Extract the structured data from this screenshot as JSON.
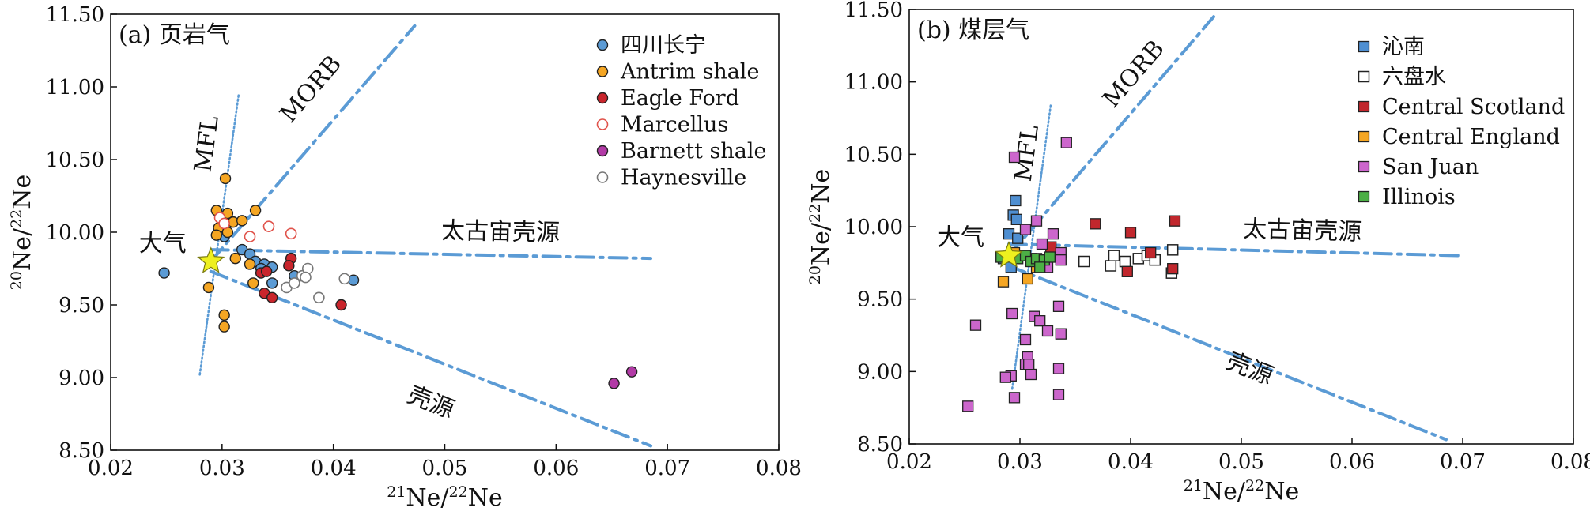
{
  "colors": {
    "line": "#5b9bd5",
    "sichuan": "#5b9bd5",
    "antrim": "#f5a623",
    "eagle": "#c9252c",
    "marcellus": "#e0524a",
    "barnett": "#b23aa6",
    "haynesville": "#777777",
    "qinnan": "#4f8fd1",
    "liupanshui": "#222222",
    "scotland": "#c1272d",
    "england": "#f5a623",
    "sanjuan": "#cc66cc",
    "illinois": "#4caf45",
    "star": "#eef01f"
  },
  "chart_data": [
    {
      "type": "scatter",
      "panel_label": "(a) 页岩气",
      "xlabel": "21Ne/22Ne",
      "ylabel": "20Ne/22Ne",
      "xlim": [
        0.02,
        0.08
      ],
      "ylim": [
        8.5,
        11.5
      ],
      "xticks": [
        "0.02",
        "0.03",
        "0.04",
        "0.05",
        "0.06",
        "0.07",
        "0.08"
      ],
      "yticks": [
        "8.50",
        "9.00",
        "9.50",
        "10.00",
        "10.50",
        "11.00",
        "11.50"
      ],
      "legend_position": "top-right",
      "atmosphere": {
        "label": "大气",
        "x": 0.029,
        "y": 9.8
      },
      "lines": [
        {
          "name": "MFL",
          "style": "dotted",
          "points": [
            [
              0.028,
              9.02
            ],
            [
              0.0315,
              10.95
            ]
          ],
          "label_at": [
            0.0293,
            10.6
          ]
        },
        {
          "name": "MORB",
          "style": "dashdot",
          "points": [
            [
              0.029,
              9.8
            ],
            [
              0.0473,
              11.42
            ]
          ],
          "label_at": [
            0.0385,
            10.95
          ]
        },
        {
          "name": "太古宙壳源",
          "style": "dashdot",
          "points": [
            [
              0.029,
              9.88
            ],
            [
              0.0685,
              9.82
            ]
          ],
          "label_at": [
            0.055,
            9.95
          ]
        },
        {
          "name": "壳源",
          "style": "dashdot",
          "points": [
            [
              0.029,
              9.73
            ],
            [
              0.0685,
              8.53
            ]
          ],
          "label_at": [
            0.0485,
            8.78
          ]
        }
      ],
      "series": [
        {
          "name": "四川长宁",
          "marker": "circle",
          "fill": "sichuan",
          "points": [
            [
              0.0248,
              9.72
            ],
            [
              0.0302,
              9.97
            ],
            [
              0.0318,
              9.88
            ],
            [
              0.0325,
              9.85
            ],
            [
              0.033,
              9.8
            ],
            [
              0.0338,
              9.78
            ],
            [
              0.0345,
              9.76
            ],
            [
              0.0335,
              9.75
            ],
            [
              0.0345,
              9.65
            ],
            [
              0.0365,
              9.7
            ],
            [
              0.0418,
              9.67
            ]
          ]
        },
        {
          "name": "Antrim shale",
          "marker": "circle",
          "fill": "antrim",
          "points": [
            [
              0.0303,
              10.37
            ],
            [
              0.0295,
              10.15
            ],
            [
              0.0305,
              10.13
            ],
            [
              0.031,
              10.07
            ],
            [
              0.0318,
              10.08
            ],
            [
              0.033,
              10.15
            ],
            [
              0.0297,
              10.03
            ],
            [
              0.0305,
              10.0
            ],
            [
              0.0295,
              9.98
            ],
            [
              0.0312,
              9.82
            ],
            [
              0.0325,
              9.78
            ],
            [
              0.0328,
              9.65
            ],
            [
              0.0288,
              9.62
            ],
            [
              0.0302,
              9.43
            ],
            [
              0.0302,
              9.35
            ]
          ]
        },
        {
          "name": "Eagle Ford",
          "marker": "circle",
          "fill": "eagle",
          "points": [
            [
              0.0335,
              9.72
            ],
            [
              0.034,
              9.73
            ],
            [
              0.0362,
              9.82
            ],
            [
              0.036,
              9.77
            ],
            [
              0.0338,
              9.58
            ],
            [
              0.0345,
              9.55
            ],
            [
              0.0407,
              9.5
            ]
          ]
        },
        {
          "name": "Marcellus",
          "marker": "circle-open",
          "fill": "marcellus",
          "points": [
            [
              0.0298,
              10.1
            ],
            [
              0.0302,
              10.06
            ],
            [
              0.0325,
              9.97
            ],
            [
              0.0342,
              10.04
            ],
            [
              0.0362,
              9.99
            ]
          ]
        },
        {
          "name": "Barnett shale",
          "marker": "circle",
          "fill": "barnett",
          "points": [
            [
              0.0652,
              8.96
            ],
            [
              0.0668,
              9.04
            ]
          ]
        },
        {
          "name": "Haynesville",
          "marker": "circle-open",
          "fill": "haynesville",
          "points": [
            [
              0.0358,
              9.62
            ],
            [
              0.0365,
              9.65
            ],
            [
              0.0372,
              9.7
            ],
            [
              0.0377,
              9.75
            ],
            [
              0.0375,
              9.69
            ],
            [
              0.0387,
              9.55
            ],
            [
              0.041,
              9.68
            ]
          ]
        }
      ]
    },
    {
      "type": "scatter",
      "panel_label": "(b) 煤层气",
      "xlabel": "21Ne/22Ne",
      "ylabel": "20Ne/22Ne",
      "xlim": [
        0.02,
        0.08
      ],
      "ylim": [
        8.5,
        11.5
      ],
      "xticks": [
        "0.02",
        "0.03",
        "0.04",
        "0.05",
        "0.06",
        "0.07",
        "0.08"
      ],
      "yticks": [
        "8.50",
        "9.00",
        "9.50",
        "10.00",
        "10.50",
        "11.00",
        "11.50"
      ],
      "legend_position": "top-right",
      "atmosphere": {
        "label": "大气",
        "x": 0.029,
        "y": 9.8
      },
      "lines": [
        {
          "name": "MFL",
          "style": "dotted",
          "points": [
            [
              0.0293,
              8.88
            ],
            [
              0.0328,
              10.85
            ]
          ],
          "label_at": [
            0.0313,
            10.5
          ]
        },
        {
          "name": "MORB",
          "style": "dashdot",
          "points": [
            [
              0.029,
              9.8
            ],
            [
              0.0475,
              11.45
            ]
          ],
          "label_at": [
            0.0408,
            11.02
          ]
        },
        {
          "name": "太古宙壳源",
          "style": "dashdot",
          "points": [
            [
              0.029,
              9.88
            ],
            [
              0.07,
              9.8
            ]
          ],
          "label_at": [
            0.0555,
            9.92
          ]
        },
        {
          "name": "壳源",
          "style": "dashdot",
          "points": [
            [
              0.029,
              9.73
            ],
            [
              0.0685,
              8.53
            ]
          ],
          "label_at": [
            0.0505,
            8.97
          ]
        }
      ],
      "series": [
        {
          "name": "沁南",
          "marker": "square",
          "fill": "qinnan",
          "points": [
            [
              0.0296,
              10.18
            ],
            [
              0.0294,
              10.08
            ],
            [
              0.0297,
              10.05
            ],
            [
              0.029,
              9.95
            ],
            [
              0.0298,
              9.92
            ],
            [
              0.0285,
              9.78
            ],
            [
              0.0292,
              9.72
            ]
          ]
        },
        {
          "name": "六盘水",
          "marker": "square-open",
          "fill": "liupanshui",
          "points": [
            [
              0.0358,
              9.76
            ],
            [
              0.0382,
              9.73
            ],
            [
              0.0385,
              9.8
            ],
            [
              0.0395,
              9.76
            ],
            [
              0.0407,
              9.78
            ],
            [
              0.0415,
              9.8
            ],
            [
              0.0422,
              9.77
            ],
            [
              0.0437,
              9.68
            ],
            [
              0.0438,
              9.84
            ]
          ]
        },
        {
          "name": "Central Scotland",
          "marker": "square",
          "fill": "scotland",
          "points": [
            [
              0.0368,
              10.02
            ],
            [
              0.04,
              9.96
            ],
            [
              0.044,
              10.04
            ],
            [
              0.0418,
              9.82
            ],
            [
              0.0397,
              9.69
            ],
            [
              0.0438,
              9.71
            ],
            [
              0.0328,
              9.86
            ]
          ]
        },
        {
          "name": "Central England",
          "marker": "square",
          "fill": "england",
          "points": [
            [
              0.0295,
              9.82
            ],
            [
              0.031,
              9.78
            ],
            [
              0.0285,
              9.62
            ],
            [
              0.0307,
              9.64
            ],
            [
              0.0315,
              9.72
            ]
          ]
        },
        {
          "name": "San Juan",
          "marker": "square",
          "fill": "sanjuan",
          "points": [
            [
              0.0295,
              10.48
            ],
            [
              0.0342,
              10.58
            ],
            [
              0.0315,
              10.04
            ],
            [
              0.0305,
              9.98
            ],
            [
              0.032,
              9.88
            ],
            [
              0.033,
              9.95
            ],
            [
              0.0337,
              9.82
            ],
            [
              0.0337,
              9.77
            ],
            [
              0.0325,
              9.72
            ],
            [
              0.0293,
              9.4
            ],
            [
              0.026,
              9.32
            ],
            [
              0.0313,
              9.38
            ],
            [
              0.0318,
              9.35
            ],
            [
              0.0325,
              9.28
            ],
            [
              0.0335,
              9.45
            ],
            [
              0.0337,
              9.26
            ],
            [
              0.0305,
              9.22
            ],
            [
              0.0307,
              9.1
            ],
            [
              0.0305,
              9.05
            ],
            [
              0.031,
              8.98
            ],
            [
              0.0292,
              8.97
            ],
            [
              0.0287,
              8.96
            ],
            [
              0.0308,
              9.05
            ],
            [
              0.0335,
              9.02
            ],
            [
              0.0295,
              8.82
            ],
            [
              0.0335,
              8.84
            ],
            [
              0.0253,
              8.76
            ]
          ]
        },
        {
          "name": "Illinois",
          "marker": "square",
          "fill": "illinois",
          "points": [
            [
              0.0283,
              9.79
            ],
            [
              0.0298,
              9.78
            ],
            [
              0.0305,
              9.8
            ],
            [
              0.031,
              9.76
            ],
            [
              0.0315,
              9.78
            ],
            [
              0.0322,
              9.77
            ],
            [
              0.0327,
              9.79
            ],
            [
              0.0318,
              9.72
            ]
          ]
        }
      ]
    }
  ]
}
